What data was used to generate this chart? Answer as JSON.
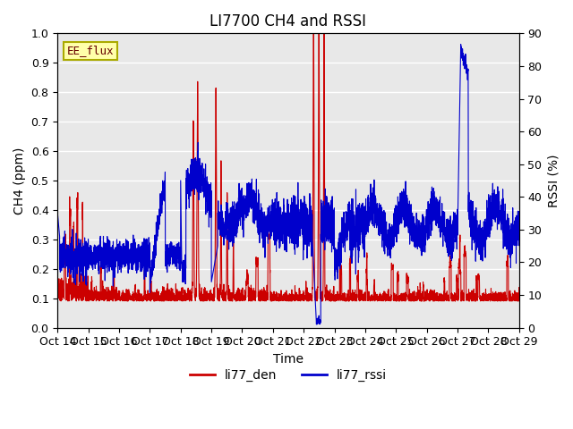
{
  "title": "LI7700 CH4 and RSSI",
  "xlabel": "Time",
  "ylabel_left": "CH4 (ppm)",
  "ylabel_right": "RSSI (%)",
  "ylim_left": [
    0.0,
    1.0
  ],
  "ylim_right": [
    0,
    90
  ],
  "yticks_left": [
    0.0,
    0.1,
    0.2,
    0.3,
    0.4,
    0.5,
    0.6,
    0.7,
    0.8,
    0.9,
    1.0
  ],
  "yticks_right": [
    0,
    10,
    20,
    30,
    40,
    50,
    60,
    70,
    80,
    90
  ],
  "xtick_labels": [
    "Oct 14",
    "Oct 15",
    "Oct 16",
    "Oct 17",
    "Oct 18",
    "Oct 19",
    "Oct 20",
    "Oct 21",
    "Oct 22",
    "Oct 23",
    "Oct 24",
    "Oct 25",
    "Oct 26",
    "Oct 27",
    "Oct 28",
    "Oct 29"
  ],
  "color_red": "#cc0000",
  "color_blue": "#0000cc",
  "legend_label_red": "li77_den",
  "legend_label_blue": "li77_rssi",
  "text_box_label": "EE_flux",
  "text_box_color": "#ffffaa",
  "text_box_border": "#aaaa00",
  "background_color": "#e8e8e8",
  "grid_color": "#ffffff",
  "title_fontsize": 12,
  "label_fontsize": 10,
  "tick_fontsize": 9
}
